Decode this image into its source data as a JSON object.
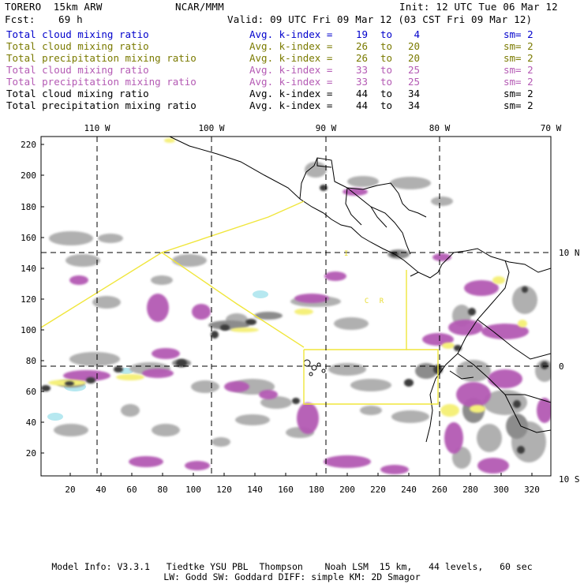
{
  "header": {
    "model": "TORERO  15km ARW",
    "org": "NCAR/MMM",
    "init": "Init: 12 UTC Tue 06 Mar 12",
    "fcst_label": "Fcst:",
    "fcst_value": "69 h",
    "valid": "Valid: 09 UTC Fri 09 Mar 12 (03 CST Fri 09 Mar 12)"
  },
  "legend": [
    {
      "label": "Total cloud mixing ratio",
      "avg": "Avg. k-index =",
      "from": "19",
      "to": "to",
      "until": "4",
      "sm": "sm= 2",
      "color": "#0000cc"
    },
    {
      "label": "Total cloud mixing ratio",
      "avg": "Avg. k-index =",
      "from": "26",
      "to": "to",
      "until": "20",
      "sm": "sm= 2",
      "color": "#7a7a00"
    },
    {
      "label": "Total precipitation mixing ratio",
      "avg": "Avg. k-index =",
      "from": "26",
      "to": "to",
      "until": "20",
      "sm": "sm= 2",
      "color": "#7a7a00"
    },
    {
      "label": "Total cloud mixing ratio",
      "avg": "Avg. k-index =",
      "from": "33",
      "to": "to",
      "until": "25",
      "sm": "sm= 2",
      "color": "#b45ab4"
    },
    {
      "label": "Total precipitation mixing ratio",
      "avg": "Avg. k-index =",
      "from": "33",
      "to": "to",
      "until": "25",
      "sm": "sm= 2",
      "color": "#b45ab4"
    },
    {
      "label": "Total cloud mixing ratio",
      "avg": "Avg. k-index =",
      "from": "44",
      "to": "to",
      "until": "34",
      "sm": "sm= 2",
      "color": "#000000"
    },
    {
      "label": "Total precipitation mixing ratio",
      "avg": "Avg. k-index =",
      "from": "44",
      "to": "to",
      "until": "34",
      "sm": "sm= 2",
      "color": "#000000"
    }
  ],
  "map": {
    "top_labels": [
      "110 W",
      "100 W",
      "90 W",
      "80 W",
      "70 W"
    ],
    "right_labels": [
      "10 N",
      "0",
      "10 S"
    ],
    "y_ticks": [
      "220",
      "200",
      "180",
      "160",
      "140",
      "120",
      "100",
      "80",
      "60",
      "40",
      "20"
    ],
    "x_ticks": [
      "20",
      "40",
      "60",
      "80",
      "100",
      "120",
      "140",
      "160",
      "180",
      "200",
      "220",
      "240",
      "260",
      "280",
      "300",
      "320"
    ],
    "inset_label": "C R",
    "small_mark": "I",
    "colors": {
      "cloud_light": "#b0b0b0",
      "cloud_mid": "#8c8c8c",
      "cloud_dark": "#3c3c3c",
      "precip_purple": "#b45ab4",
      "yellow": "#f5f07a",
      "cyan": "#b6e8f0",
      "outline_yellow": "#f0e63c",
      "coast": "#000000"
    }
  },
  "footer": {
    "line1": "Model Info: V3.3.1   Tiedtke YSU PBL  Thompson    Noah LSM  15 km,   44 levels,   60 sec",
    "line2": "LW: Godd SW: Goddard DIFF: simple KM: 2D Smagor"
  }
}
